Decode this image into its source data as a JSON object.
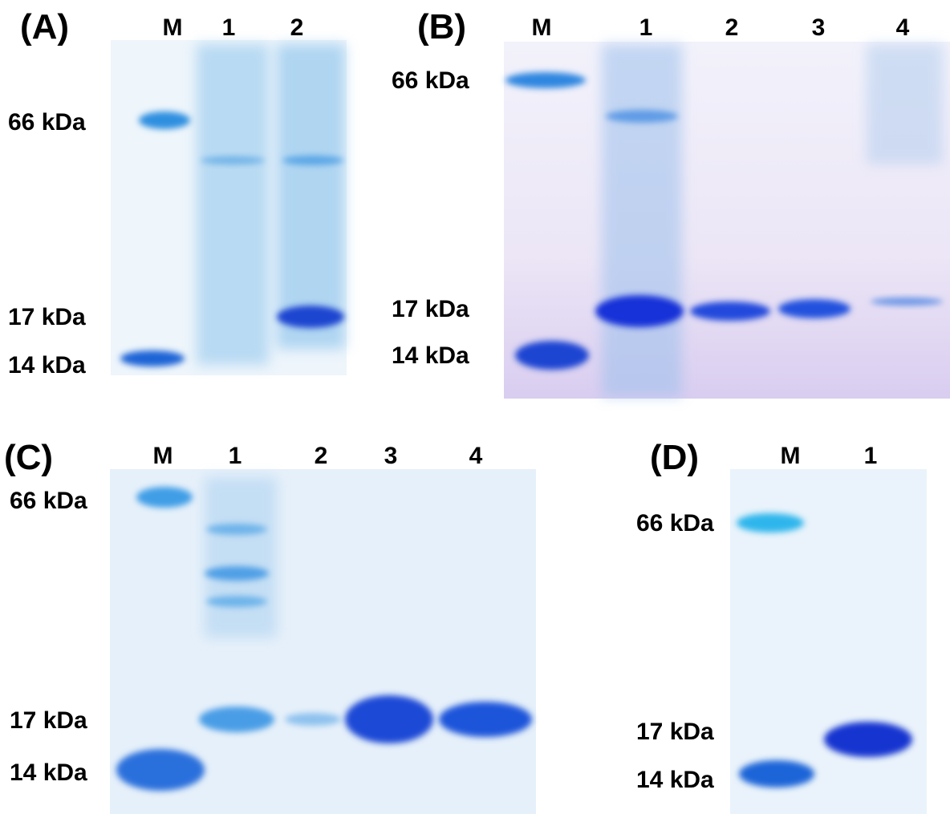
{
  "panels": [
    {
      "label": "(A)",
      "lanes": [
        "M",
        "1",
        "2"
      ],
      "markers": [
        "66 kDa",
        "17 kDa",
        "14 kDa"
      ]
    },
    {
      "label": "(B)",
      "lanes": [
        "M",
        "1",
        "2",
        "3",
        "4"
      ],
      "markers": [
        "66 kDa",
        "17 kDa",
        "14 kDa"
      ]
    },
    {
      "label": "(C)",
      "lanes": [
        "M",
        "1",
        "2",
        "3",
        "4"
      ],
      "markers": [
        "66 kDa",
        "17 kDa",
        "14 kDa"
      ]
    },
    {
      "label": "(D)",
      "lanes": [
        "M",
        "1"
      ],
      "markers": [
        "66 kDa",
        "17 kDa",
        "14 kDa"
      ]
    }
  ]
}
